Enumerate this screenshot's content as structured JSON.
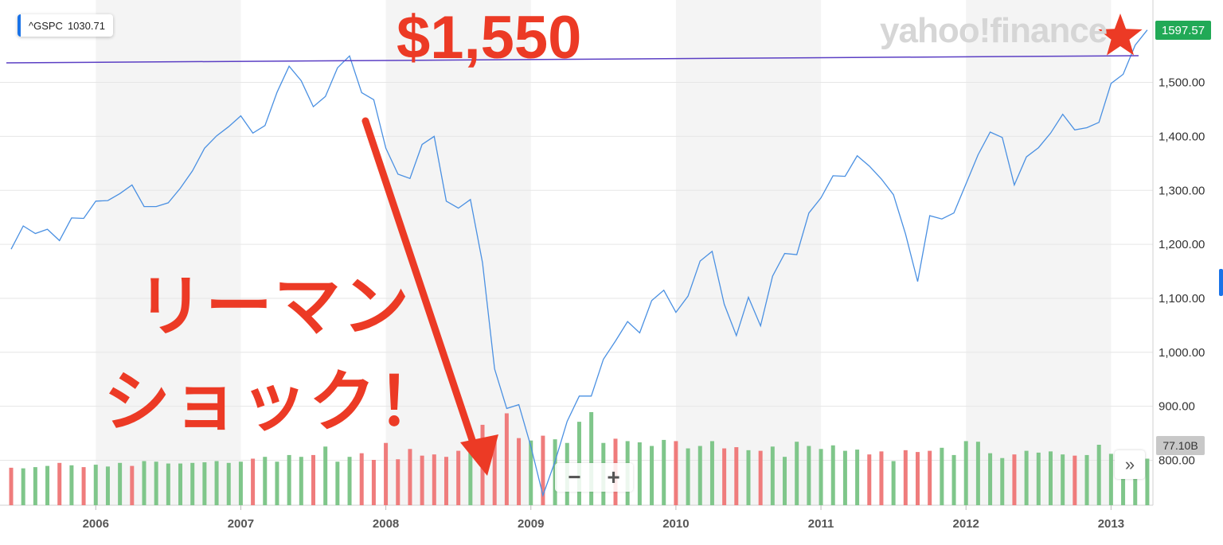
{
  "ticker": {
    "symbol": "^GSPC",
    "value": "1030.71"
  },
  "logo": "yahoo!finance",
  "annotations": {
    "price_label": "$1,550",
    "jp_line1": "リーマン",
    "jp_line2": "ショック！",
    "line_color": "#5b3fc4",
    "annotation_color": "#ec3a25"
  },
  "last_price": "1597.57",
  "volume_badge": "77.10B",
  "controls": {
    "zoom_out": "−",
    "zoom_in": "+",
    "expand": "»"
  },
  "colors": {
    "line": "#4a90e2",
    "up_volume": "#7fc68a",
    "down_volume": "#ef7c7c",
    "band": "#f4f4f4",
    "last_price_bg": "#21a956"
  },
  "chart_data": {
    "type": "line",
    "series": [
      {
        "name": "^GSPC",
        "x": [
          "2005-06",
          "2005-07",
          "2005-08",
          "2005-09",
          "2005-10",
          "2005-11",
          "2005-12",
          "2006-01",
          "2006-02",
          "2006-03",
          "2006-04",
          "2006-05",
          "2006-06",
          "2006-07",
          "2006-08",
          "2006-09",
          "2006-10",
          "2006-11",
          "2006-12",
          "2007-01",
          "2007-02",
          "2007-03",
          "2007-04",
          "2007-05",
          "2007-06",
          "2007-07",
          "2007-08",
          "2007-09",
          "2007-10",
          "2007-11",
          "2007-12",
          "2008-01",
          "2008-02",
          "2008-03",
          "2008-04",
          "2008-05",
          "2008-06",
          "2008-07",
          "2008-08",
          "2008-09",
          "2008-10",
          "2008-11",
          "2008-12",
          "2009-01",
          "2009-02",
          "2009-03",
          "2009-04",
          "2009-05",
          "2009-06",
          "2009-07",
          "2009-08",
          "2009-09",
          "2009-10",
          "2009-11",
          "2009-12",
          "2010-01",
          "2010-02",
          "2010-03",
          "2010-04",
          "2010-05",
          "2010-06",
          "2010-07",
          "2010-08",
          "2010-09",
          "2010-10",
          "2010-11",
          "2010-12",
          "2011-01",
          "2011-02",
          "2011-03",
          "2011-04",
          "2011-05",
          "2011-06",
          "2011-07",
          "2011-08",
          "2011-09",
          "2011-10",
          "2011-11",
          "2011-12",
          "2012-01",
          "2012-02",
          "2012-03",
          "2012-04",
          "2012-05",
          "2012-06",
          "2012-07",
          "2012-08",
          "2012-09",
          "2012-10",
          "2012-11",
          "2012-12",
          "2013-01",
          "2013-02",
          "2013-03",
          "2013-04"
        ],
        "values": [
          1191,
          1234,
          1220,
          1228,
          1207,
          1249,
          1248,
          1280,
          1281,
          1294,
          1310,
          1270,
          1270,
          1277,
          1304,
          1336,
          1378,
          1401,
          1418,
          1438,
          1406,
          1420,
          1482,
          1530,
          1503,
          1455,
          1474,
          1527,
          1549,
          1481,
          1468,
          1378,
          1330,
          1322,
          1385,
          1400,
          1280,
          1267,
          1283,
          1166,
          969,
          896,
          903,
          826,
          735,
          798,
          872,
          919,
          919,
          987,
          1021,
          1057,
          1036,
          1096,
          1115,
          1074,
          1104,
          1169,
          1187,
          1089,
          1031,
          1102,
          1049,
          1141,
          1183,
          1181,
          1258,
          1286,
          1327,
          1326,
          1364,
          1345,
          1321,
          1292,
          1219,
          1131,
          1253,
          1247,
          1258,
          1312,
          1366,
          1408,
          1398,
          1310,
          1362,
          1379,
          1406,
          1441,
          1412,
          1416,
          1426,
          1498,
          1515,
          1569,
          1597
        ]
      },
      {
        "name": "Volume",
        "unit": "B",
        "values": [
          62,
          61,
          63,
          65,
          70,
          66,
          63,
          67,
          64,
          70,
          65,
          73,
          72,
          69,
          69,
          70,
          71,
          73,
          70,
          72,
          77,
          80,
          72,
          83,
          80,
          83,
          97,
          72,
          80,
          86,
          75,
          103,
          76,
          93,
          82,
          84,
          80,
          90,
          121,
          133,
          114,
          152,
          111,
          107,
          115,
          109,
          103,
          138,
          154,
          103,
          110,
          106,
          104,
          98,
          108,
          106,
          94,
          98,
          106,
          94,
          96,
          91,
          90,
          97,
          80,
          105,
          98,
          93,
          99,
          90,
          92,
          84,
          89,
          73,
          91,
          88,
          90,
          95,
          83,
          106,
          105,
          86,
          78,
          84,
          90,
          87,
          89,
          84,
          82,
          83,
          100,
          85,
          67,
          73,
          77
        ],
        "direction": [
          "d",
          "u",
          "u",
          "u",
          "d",
          "u",
          "d",
          "u",
          "u",
          "u",
          "d",
          "u",
          "u",
          "u",
          "u",
          "u",
          "u",
          "u",
          "u",
          "u",
          "d",
          "u",
          "u",
          "u",
          "u",
          "d",
          "u",
          "u",
          "u",
          "d",
          "d",
          "d",
          "d",
          "d",
          "d",
          "d",
          "d",
          "d",
          "u",
          "d",
          "d",
          "d",
          "d",
          "u",
          "d",
          "u",
          "u",
          "u",
          "u",
          "u",
          "d",
          "u",
          "u",
          "u",
          "u",
          "d",
          "u",
          "u",
          "u",
          "d",
          "d",
          "u",
          "d",
          "u",
          "u",
          "u",
          "u",
          "u",
          "u",
          "u",
          "u",
          "d",
          "d",
          "u",
          "d",
          "d",
          "d",
          "u",
          "u",
          "u",
          "u",
          "u",
          "u",
          "d",
          "u",
          "u",
          "u",
          "u",
          "d",
          "u",
          "u",
          "u",
          "u",
          "u",
          "u"
        ]
      }
    ],
    "x_ticks": [
      "2006",
      "2007",
      "2008",
      "2009",
      "2010",
      "2011",
      "2012",
      "2013"
    ],
    "y_ticks": [
      "800.00",
      "900.00",
      "1,000.00",
      "1,100.00",
      "1,200.00",
      "1,300.00",
      "1,400.00",
      "1,500.00"
    ],
    "ylim": [
      710,
      1640
    ],
    "horizontal_line_approx": 1550,
    "grid": true
  }
}
